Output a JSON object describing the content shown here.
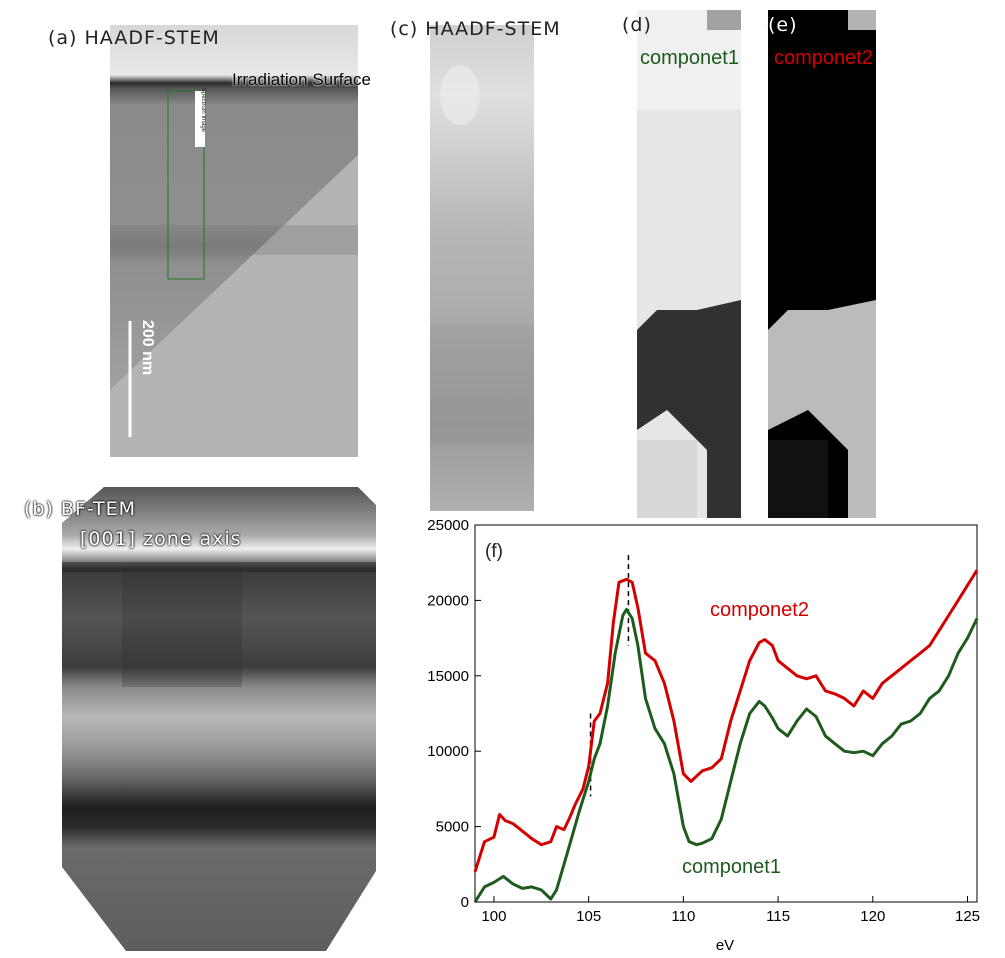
{
  "panel_a": {
    "label": "(a) HAADF-STEM",
    "annotation": "Irradiation Surface",
    "roi_tag": "Spectrum Image",
    "scale_bar": "200 nm"
  },
  "panel_b": {
    "label": "(b) BF-TEM",
    "sublabel": "[001] zone axis"
  },
  "panel_c": {
    "label": "(c) HAADF-STEM"
  },
  "panel_d": {
    "label": "(d)",
    "component": "componet1"
  },
  "panel_e": {
    "label": "(e)",
    "component": "componet2"
  },
  "colors": {
    "componet1": "#1e5c1e",
    "componet2": "#d40000"
  },
  "chart_data": {
    "type": "line",
    "panel_label": "(f)",
    "xlabel": "eV",
    "ylabel": "",
    "xlim": [
      99,
      125.5
    ],
    "ylim": [
      0,
      25000
    ],
    "x_ticks": [
      "100",
      "105",
      "110",
      "115",
      "120",
      "125"
    ],
    "y_ticks": [
      "0",
      "5000",
      "10000",
      "15000",
      "20000",
      "25000"
    ],
    "reference_lines_eV": [
      105.1,
      107.1
    ],
    "series": [
      {
        "name": "componet2",
        "color": "#d40000",
        "x": [
          99,
          99.5,
          100,
          100.3,
          100.6,
          101,
          101.5,
          102,
          102.5,
          103,
          103.3,
          103.7,
          104,
          104.3,
          104.7,
          105,
          105.3,
          105.6,
          106,
          106.3,
          106.6,
          107,
          107.3,
          107.6,
          108,
          108.5,
          109,
          109.5,
          110,
          110.4,
          111,
          111.5,
          112,
          112.5,
          113,
          113.5,
          114,
          114.3,
          114.7,
          115,
          115.5,
          116,
          116.5,
          117,
          117.5,
          118,
          118.5,
          119,
          119.5,
          120,
          120.5,
          121,
          121.5,
          122,
          122.5,
          123,
          123.5,
          124,
          124.5,
          125,
          125.5
        ],
        "y": [
          2000,
          4000,
          4300,
          5800,
          5400,
          5200,
          4700,
          4200,
          3800,
          4000,
          5000,
          4800,
          5600,
          6500,
          7500,
          9000,
          12000,
          12500,
          14500,
          18500,
          21200,
          21400,
          21200,
          19500,
          16500,
          16000,
          14500,
          12000,
          8500,
          8000,
          8700,
          8900,
          9500,
          12000,
          14000,
          16000,
          17200,
          17400,
          17000,
          16000,
          15500,
          15000,
          14800,
          15000,
          14000,
          13800,
          13500,
          13000,
          14000,
          13500,
          14500,
          15000,
          15500,
          16000,
          16500,
          17000,
          18000,
          19000,
          20000,
          21000,
          22000
        ]
      },
      {
        "name": "componet1",
        "color": "#1e5c1e",
        "x": [
          99,
          99.5,
          100,
          100.5,
          101,
          101.5,
          102,
          102.5,
          103,
          103.3,
          103.7,
          104,
          104.5,
          105,
          105.3,
          105.6,
          106,
          106.4,
          106.8,
          107,
          107.3,
          107.6,
          108,
          108.5,
          109,
          109.5,
          110,
          110.3,
          110.7,
          111,
          111.5,
          112,
          112.5,
          113,
          113.5,
          114,
          114.3,
          114.7,
          115,
          115.5,
          116,
          116.5,
          117,
          117.5,
          118,
          118.5,
          119,
          119.5,
          120,
          120.5,
          121,
          121.5,
          122,
          122.5,
          123,
          123.5,
          124,
          124.5,
          125,
          125.5
        ],
        "y": [
          0,
          1000,
          1300,
          1700,
          1200,
          900,
          1000,
          800,
          200,
          800,
          2500,
          3800,
          6000,
          8000,
          9500,
          10500,
          13000,
          16500,
          19000,
          19400,
          18800,
          17000,
          13500,
          11500,
          10500,
          8500,
          5000,
          4000,
          3800,
          3900,
          4200,
          5500,
          8000,
          10500,
          12500,
          13300,
          13000,
          12200,
          11500,
          11000,
          12000,
          12800,
          12300,
          11000,
          10500,
          10000,
          9900,
          10000,
          9700,
          10500,
          11000,
          11800,
          12000,
          12500,
          13500,
          14000,
          15000,
          16500,
          17500,
          18800
        ]
      }
    ],
    "series_labels": [
      "componet2",
      "componet1"
    ]
  }
}
